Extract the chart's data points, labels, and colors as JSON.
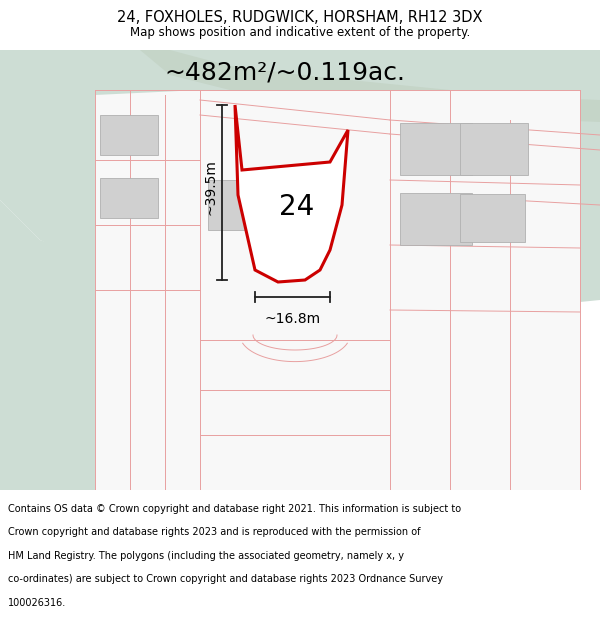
{
  "title": "24, FOXHOLES, RUDGWICK, HORSHAM, RH12 3DX",
  "subtitle": "Map shows position and indicative extent of the property.",
  "footer_lines": [
    "Contains OS data © Crown copyright and database right 2021. This information is subject to",
    "Crown copyright and database rights 2023 and is reproduced with the permission of",
    "HM Land Registry. The polygons (including the associated geometry, namely x, y",
    "co-ordinates) are subject to Crown copyright and database rights 2023 Ordnance Survey",
    "100026316."
  ],
  "area_label": "~482m²/~0.119ac.",
  "width_label": "~16.8m",
  "height_label": "~39.5m",
  "number_label": "24",
  "bg_map_color": "#e8eeeb",
  "white_area_color": "#f8f8f8",
  "green_area_color": "#cdddd4",
  "road_strip_color": "#c5d5c8",
  "plot_fill_color": "#ffffff",
  "plot_border_color": "#cc0000",
  "building_fill_color": "#d0d0d0",
  "building_edge_color": "#b0b0b0",
  "pink_line_color": "#e8a0a0",
  "dark_line_color": "#222222",
  "title_fontsize": 10.5,
  "subtitle_fontsize": 8.5,
  "footer_fontsize": 7.0,
  "area_label_fontsize": 18,
  "dim_label_fontsize": 10,
  "number_fontsize": 20
}
